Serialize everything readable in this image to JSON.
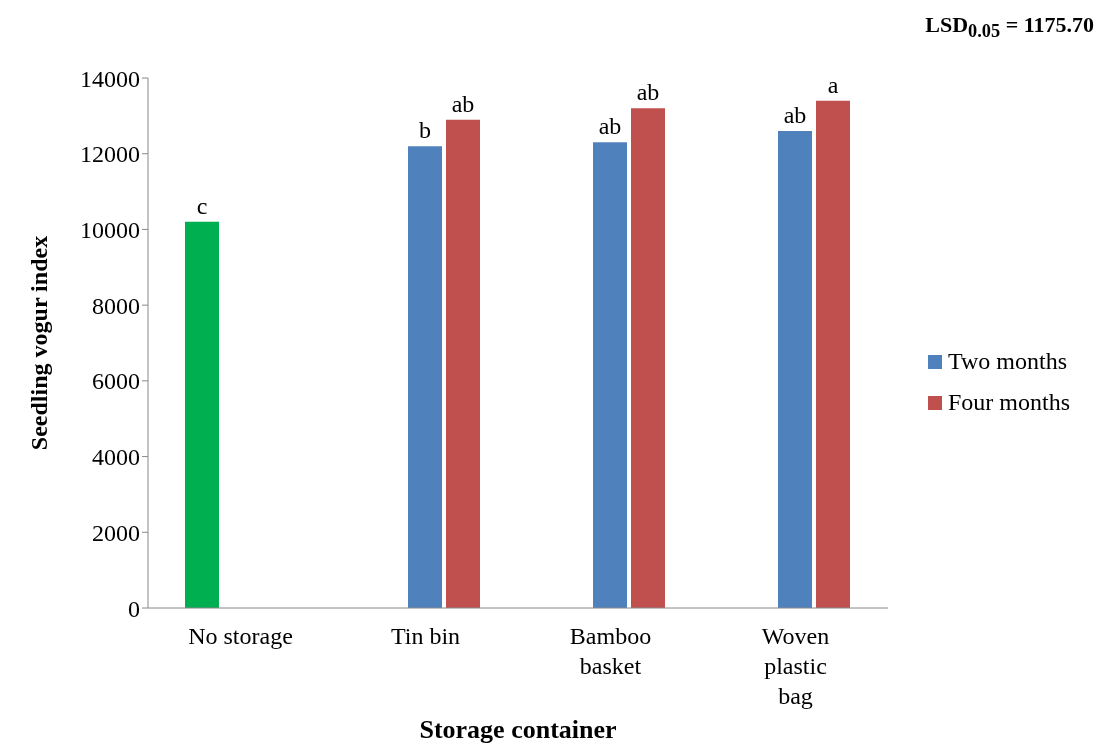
{
  "chart_data": {
    "type": "bar",
    "ylabel": "Seedling vogur index",
    "xlabel": "Storage container",
    "annotations": [
      "LSD$_{0.05}$ = 1175.70"
    ],
    "categories": [
      "No storage",
      "Tin bin",
      "Bamboo basket",
      "Woven plastic bag"
    ],
    "series": [
      {
        "color": "#00b050",
        "values": [
          10200,
          null,
          null,
          null
        ],
        "value_labels": [
          "c",
          null,
          null,
          null
        ]
      },
      {
        "name": "Two months",
        "color": "#4f81bd",
        "values": [
          null,
          12200,
          12300,
          12600
        ],
        "value_labels": [
          null,
          "b",
          "ab",
          "ab"
        ]
      },
      {
        "name": "Four months",
        "color": "#c0504d",
        "values": [
          null,
          12900,
          13200,
          13400
        ],
        "value_labels": [
          null,
          "ab",
          "ab",
          "a"
        ]
      }
    ],
    "ylim": [
      0,
      14000
    ],
    "yticks": [
      0,
      2000,
      4000,
      6000,
      8000,
      10000,
      12000,
      14000
    ],
    "legend": "right"
  }
}
